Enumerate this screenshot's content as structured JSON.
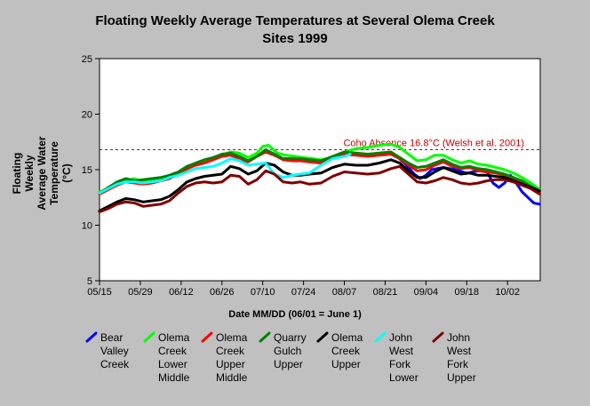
{
  "chart_data": {
    "type": "line",
    "title": "Floating Weekly Average Temperatures at Several Olema Creek Sites 1999",
    "title_lines": [
      "Floating Weekly Average Temperatures at Several Olema Creek",
      "Sites 1999"
    ],
    "xlabel": "Date MM/DD (06/01 = June 1)",
    "ylabel": "Floating Weekly Average Water Temperature (°C)",
    "ylabel_display": "Floating Weekly\nAverage Water\nTemperature (°C)",
    "ylim": [
      5,
      25
    ],
    "yticks": [
      5,
      10,
      15,
      20,
      25
    ],
    "xlim_day": [
      0,
      150
    ],
    "xticks": [
      {
        "day": 0,
        "label": "05/15"
      },
      {
        "day": 14,
        "label": "05/29"
      },
      {
        "day": 28,
        "label": "06/12"
      },
      {
        "day": 42,
        "label": "06/26"
      },
      {
        "day": 56,
        "label": "07/10"
      },
      {
        "day": 70,
        "label": "07/24"
      },
      {
        "day": 84,
        "label": "08/07"
      },
      {
        "day": 98,
        "label": "08/21"
      },
      {
        "day": 112,
        "label": "09/04"
      },
      {
        "day": 126,
        "label": "09/18"
      },
      {
        "day": 140,
        "label": "10/02"
      }
    ],
    "grid": false,
    "legend_position": "bottom",
    "reference_line": {
      "y": 16.8,
      "label": "Coho Absence 16.8°C (Welsh et al. 2001)",
      "color": "#cc0000"
    },
    "series": [
      {
        "name": "Bear Valley Creek",
        "legend_label": "Bear\nValley\nCreek",
        "color": "#0000ff",
        "x": [
          102,
          105,
          108,
          110,
          112,
          114,
          118,
          122,
          126,
          130,
          133,
          135,
          137,
          139,
          141,
          143,
          145,
          147,
          149,
          151
        ],
        "y": [
          16.2,
          15.5,
          14.6,
          14.2,
          14.5,
          15.0,
          15.2,
          15.0,
          14.7,
          14.9,
          14.8,
          13.8,
          13.4,
          13.8,
          14.5,
          13.8,
          13.0,
          12.5,
          12.0,
          11.9
        ]
      },
      {
        "name": "Olema Creek Lower Middle",
        "legend_label": "Olema\nCreek\nLower\nMiddle",
        "color": "#00ff00",
        "x": [
          0,
          3,
          6,
          9,
          12,
          15,
          18,
          21,
          24,
          27,
          30,
          33,
          36,
          39,
          42,
          45,
          48,
          51,
          54,
          56,
          58,
          61,
          64,
          67,
          70,
          73,
          76,
          80,
          84,
          88,
          92,
          96,
          100,
          103,
          106,
          109,
          112,
          115,
          118,
          121,
          124,
          127,
          130,
          133,
          136,
          139,
          142,
          145,
          148,
          151
        ],
        "y": [
          13.0,
          13.3,
          13.8,
          14.0,
          14.2,
          13.9,
          14.0,
          14.1,
          14.3,
          14.5,
          15.0,
          15.5,
          15.8,
          16.0,
          16.3,
          16.6,
          16.5,
          16.1,
          16.5,
          17.1,
          17.2,
          16.5,
          16.3,
          16.2,
          16.1,
          16.0,
          15.9,
          16.1,
          16.6,
          16.9,
          17.0,
          17.2,
          17.3,
          17.0,
          16.4,
          15.8,
          15.9,
          16.3,
          16.3,
          15.9,
          15.6,
          15.8,
          15.5,
          15.4,
          15.2,
          15.0,
          14.7,
          14.3,
          13.8,
          13.2
        ]
      },
      {
        "name": "Olema Creek Upper Middle",
        "legend_label": "Olema\nCreek\nUpper\nMiddle",
        "color": "#ff0000",
        "x": [
          0,
          3,
          6,
          9,
          12,
          15,
          18,
          21,
          24,
          27,
          30,
          33,
          36,
          39,
          42,
          45,
          48,
          51,
          54,
          57,
          60,
          63,
          66,
          69,
          72,
          76,
          80,
          84,
          88,
          92,
          96,
          100,
          103,
          106,
          109,
          112,
          115,
          118,
          121,
          124,
          127,
          130,
          133,
          136,
          139,
          142,
          145,
          148,
          151
        ],
        "y": [
          12.8,
          13.2,
          13.6,
          13.9,
          13.8,
          13.7,
          13.8,
          14.0,
          14.2,
          14.6,
          15.1,
          15.4,
          15.6,
          15.9,
          16.2,
          16.3,
          16.0,
          15.7,
          16.2,
          16.6,
          16.3,
          15.9,
          15.8,
          15.8,
          15.7,
          15.6,
          16.0,
          16.4,
          16.3,
          16.2,
          16.3,
          16.4,
          16.0,
          15.4,
          14.9,
          15.0,
          15.4,
          15.7,
          15.3,
          15.1,
          15.2,
          14.9,
          14.8,
          14.7,
          14.5,
          14.2,
          13.9,
          13.3,
          12.9
        ]
      },
      {
        "name": "Quarry Gulch Upper",
        "legend_label": "Quarry\nGulch\nUpper",
        "color": "#008000",
        "x": [
          0,
          3,
          6,
          9,
          12,
          15,
          18,
          21,
          24,
          27,
          30,
          33,
          36,
          39,
          42,
          45,
          48,
          51,
          54,
          57,
          60,
          63,
          66,
          69,
          72,
          76,
          80,
          84,
          88,
          92,
          96,
          100,
          103,
          106,
          109,
          112,
          115,
          118,
          121,
          124,
          127,
          130,
          133,
          136,
          139,
          142,
          145,
          148,
          151
        ],
        "y": [
          12.9,
          13.4,
          13.9,
          14.2,
          14.0,
          14.1,
          14.2,
          14.3,
          14.5,
          14.8,
          15.3,
          15.6,
          15.9,
          16.1,
          16.4,
          16.5,
          16.2,
          15.8,
          16.2,
          16.8,
          16.4,
          16.0,
          16.0,
          16.0,
          15.9,
          15.8,
          16.2,
          16.6,
          16.5,
          16.4,
          16.5,
          16.6,
          16.1,
          15.6,
          15.2,
          15.3,
          15.6,
          15.9,
          15.5,
          15.2,
          15.3,
          15.1,
          15.0,
          14.8,
          14.6,
          14.3,
          14.0,
          13.5,
          13.1
        ]
      },
      {
        "name": "Olema Creek Upper",
        "legend_label": "Olema\nCreek\nUpper",
        "color": "#000000",
        "x": [
          0,
          3,
          6,
          9,
          12,
          15,
          18,
          21,
          24,
          27,
          30,
          33,
          36,
          39,
          42,
          45,
          48,
          51,
          54,
          57,
          60,
          63,
          66,
          69,
          72,
          76,
          80,
          84,
          88,
          92,
          96,
          100,
          103,
          106,
          109,
          112,
          115,
          118,
          121,
          124,
          127,
          130,
          133,
          136,
          139,
          142,
          145,
          148,
          151
        ],
        "y": [
          11.3,
          11.7,
          12.1,
          12.4,
          12.3,
          12.1,
          12.2,
          12.3,
          12.6,
          13.2,
          13.9,
          14.2,
          14.4,
          14.5,
          14.6,
          15.3,
          15.1,
          14.6,
          14.9,
          15.6,
          15.4,
          14.8,
          14.5,
          14.5,
          14.6,
          14.7,
          15.2,
          15.5,
          15.4,
          15.4,
          15.6,
          15.9,
          15.6,
          14.9,
          14.3,
          14.3,
          14.8,
          15.2,
          14.9,
          14.6,
          14.7,
          14.5,
          14.5,
          14.4,
          14.3,
          14.0,
          13.7,
          13.4,
          13.1
        ]
      },
      {
        "name": "John West Fork Lower",
        "legend_label": "John\nWest\nFork\nLower",
        "color": "#00ffff",
        "x": [
          0,
          3,
          6,
          9,
          12,
          15,
          18,
          21,
          24,
          27,
          30,
          33,
          36,
          39,
          42,
          45,
          48,
          51,
          54,
          57,
          60,
          63,
          66,
          69,
          72,
          76,
          80,
          84,
          86
        ],
        "y": [
          12.9,
          13.3,
          13.7,
          13.9,
          13.9,
          13.8,
          13.9,
          14.0,
          14.3,
          14.5,
          14.8,
          15.1,
          15.2,
          15.3,
          15.6,
          16.0,
          15.8,
          15.4,
          15.5,
          15.6,
          14.6,
          14.3,
          14.5,
          14.6,
          14.7,
          15.4,
          16.0,
          16.2,
          16.4
        ]
      },
      {
        "name": "John West Fork Upper",
        "legend_label": "John\nWest\nFork\nUpper",
        "color": "#800000",
        "x": [
          0,
          3,
          6,
          9,
          12,
          15,
          18,
          21,
          24,
          27,
          30,
          33,
          36,
          39,
          42,
          45,
          48,
          51,
          54,
          57,
          60,
          63,
          66,
          69,
          72,
          76,
          80,
          84,
          88,
          92,
          96,
          100,
          103,
          106,
          109,
          112,
          115,
          118,
          121,
          124,
          127,
          130,
          133,
          136,
          139,
          142,
          145,
          148,
          151
        ],
        "y": [
          11.2,
          11.5,
          11.9,
          12.1,
          12.0,
          11.7,
          11.8,
          11.9,
          12.2,
          12.9,
          13.5,
          13.8,
          13.9,
          13.8,
          13.9,
          14.5,
          14.4,
          13.7,
          14.1,
          14.9,
          14.6,
          13.9,
          13.8,
          13.9,
          13.7,
          13.8,
          14.4,
          14.8,
          14.7,
          14.6,
          14.7,
          15.1,
          15.3,
          14.6,
          13.9,
          13.8,
          14.0,
          14.3,
          14.1,
          13.8,
          13.7,
          13.8,
          14.0,
          14.1,
          14.1,
          13.9,
          13.6,
          13.3,
          12.8
        ]
      }
    ]
  }
}
